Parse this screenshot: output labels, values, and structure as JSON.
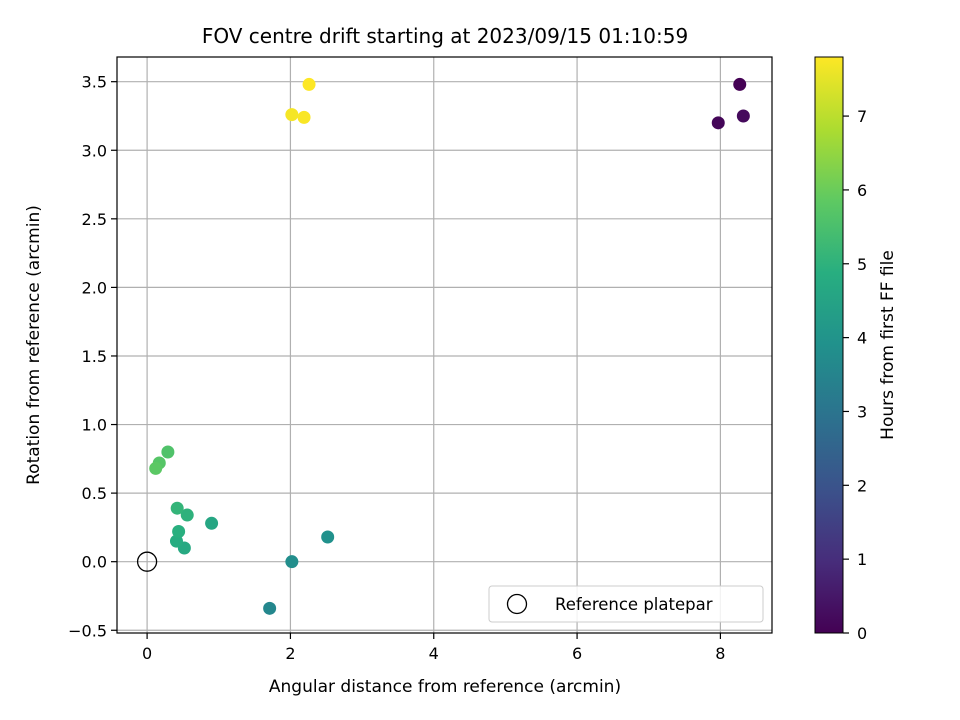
{
  "chart_data": {
    "type": "scatter",
    "title": "FOV centre drift starting at 2023/09/15 01:10:59",
    "xlabel": "Angular distance from reference (arcmin)",
    "ylabel": "Rotation from reference (arcmin)",
    "xlim": [
      -0.42,
      8.72
    ],
    "ylim": [
      -0.52,
      3.68
    ],
    "xticks": [
      0,
      2,
      4,
      6,
      8
    ],
    "xtick_labels": [
      "0",
      "2",
      "4",
      "6",
      "8"
    ],
    "yticks": [
      -0.5,
      0.0,
      0.5,
      1.0,
      1.5,
      2.0,
      2.5,
      3.0,
      3.5
    ],
    "ytick_labels": [
      "−0.5",
      "0.0",
      "0.5",
      "1.0",
      "1.5",
      "2.0",
      "2.5",
      "3.0",
      "3.5"
    ],
    "grid": true,
    "colormap": "viridis",
    "colorbar": {
      "label": "Hours from first FF file",
      "range": [
        0,
        7.8
      ],
      "ticks": [
        0,
        1,
        2,
        3,
        4,
        5,
        6,
        7
      ],
      "tick_labels": [
        "0",
        "1",
        "2",
        "3",
        "4",
        "5",
        "6",
        "7"
      ]
    },
    "reference": {
      "label": "Reference platepar",
      "x": 0.0,
      "y": 0.0
    },
    "legend_placement": "lower-right",
    "points": [
      {
        "x": 8.27,
        "y": 3.48,
        "c": 0.0
      },
      {
        "x": 7.97,
        "y": 3.2,
        "c": 0.1
      },
      {
        "x": 8.32,
        "y": 3.25,
        "c": 0.2
      },
      {
        "x": 1.71,
        "y": -0.34,
        "c": 3.6
      },
      {
        "x": 2.02,
        "y": 0.0,
        "c": 3.8
      },
      {
        "x": 2.52,
        "y": 0.18,
        "c": 3.9
      },
      {
        "x": 0.9,
        "y": 0.28,
        "c": 4.6
      },
      {
        "x": 0.52,
        "y": 0.1,
        "c": 4.7
      },
      {
        "x": 0.41,
        "y": 0.15,
        "c": 4.8
      },
      {
        "x": 0.44,
        "y": 0.22,
        "c": 4.9
      },
      {
        "x": 0.56,
        "y": 0.34,
        "c": 5.0
      },
      {
        "x": 0.42,
        "y": 0.39,
        "c": 5.1
      },
      {
        "x": 0.29,
        "y": 0.8,
        "c": 5.6
      },
      {
        "x": 0.17,
        "y": 0.72,
        "c": 5.7
      },
      {
        "x": 0.12,
        "y": 0.68,
        "c": 5.8
      },
      {
        "x": 2.02,
        "y": 3.26,
        "c": 7.7
      },
      {
        "x": 2.19,
        "y": 3.24,
        "c": 7.75
      },
      {
        "x": 2.26,
        "y": 3.48,
        "c": 7.8
      }
    ]
  }
}
